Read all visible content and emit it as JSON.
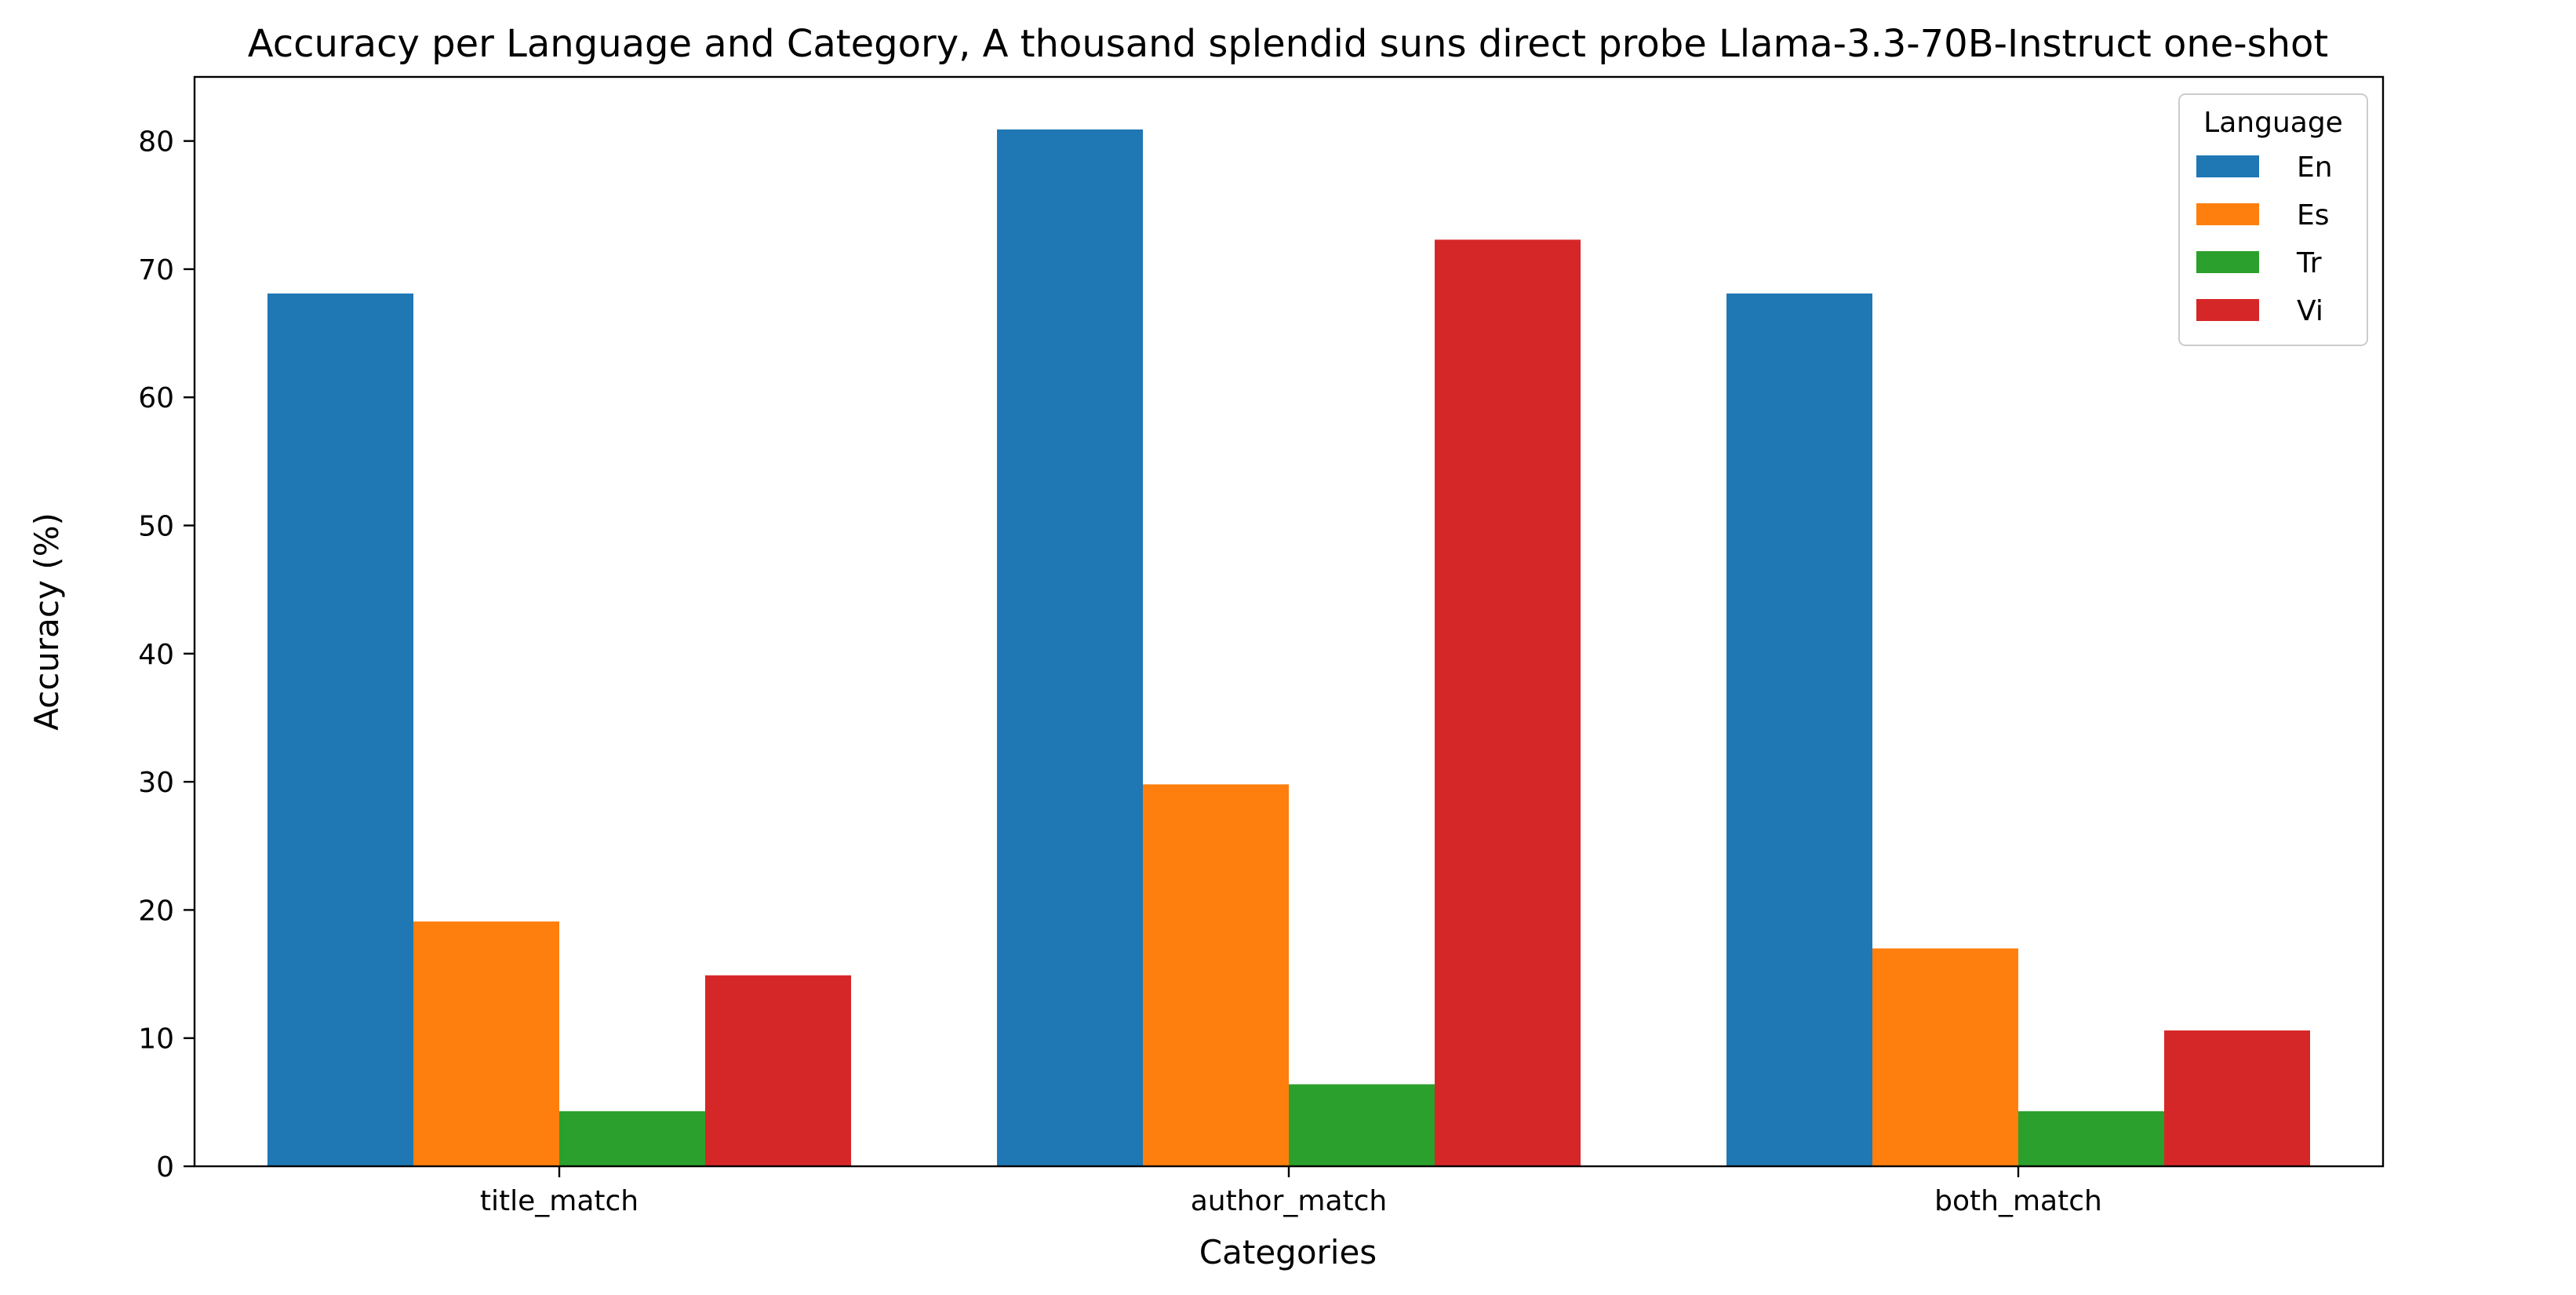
{
  "chart_data": {
    "type": "bar",
    "title": "Accuracy per Language and Category, A thousand splendid suns direct probe Llama-3.3-70B-Instruct one-shot",
    "xlabel": "Categories",
    "ylabel": "Accuracy (%)",
    "categories": [
      "title_match",
      "author_match",
      "both_match"
    ],
    "ylim": [
      0,
      85
    ],
    "yticks": [
      0,
      10,
      20,
      30,
      40,
      50,
      60,
      70,
      80
    ],
    "grid": false,
    "legend": {
      "title": "Language",
      "placement": "top-right"
    },
    "series": [
      {
        "name": "En",
        "color": "#1f77b4",
        "values": [
          68.1,
          80.9,
          68.1
        ]
      },
      {
        "name": "Es",
        "color": "#ff7f0e",
        "values": [
          19.1,
          29.8,
          17.0
        ]
      },
      {
        "name": "Tr",
        "color": "#2ca02c",
        "values": [
          4.3,
          6.4,
          4.3
        ]
      },
      {
        "name": "Vi",
        "color": "#d62728",
        "values": [
          14.9,
          72.3,
          10.6
        ]
      }
    ]
  }
}
